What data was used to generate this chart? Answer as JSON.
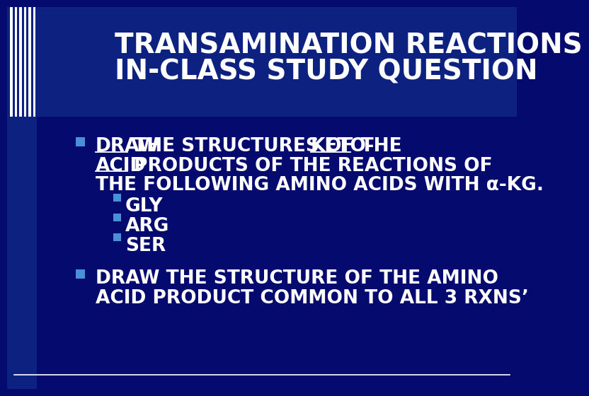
{
  "bg_color": "#050a6e",
  "title_line1": "TRANSAMINATION REACTIONS",
  "title_line2": "IN-CLASS STUDY QUESTION",
  "title_color": "#ffffff",
  "title_fontsize": 28,
  "bullet_color": "#ffffff",
  "bullet_marker_color": "#4a90d9",
  "sub_bullet_color": "#ffffff",
  "sub_bullet_marker_color": "#4a90d9",
  "sub_bullets": [
    "GLY",
    "ARG",
    "SER"
  ],
  "bullet2_text_line1": "DRAW THE STRUCTURE OF THE AMINO",
  "bullet2_text_line2": "ACID PRODUCT COMMON TO ALL 3 RXNS’",
  "bullet_fontsize": 19,
  "sub_bullet_fontsize": 19,
  "left_bar_color": "#0d2280",
  "left_stripe_color": "#ffffff",
  "bottom_line_color": "#ffffff",
  "header_bg_color": "#0d2280"
}
